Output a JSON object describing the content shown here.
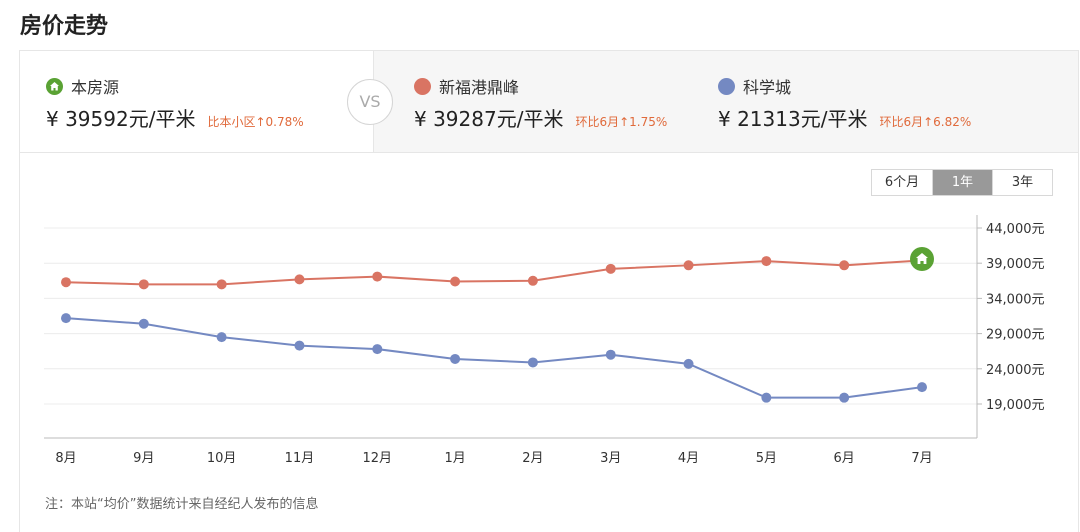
{
  "page_title": "房价走势",
  "compare": {
    "vs_label": "VS",
    "items": [
      {
        "name": "本房源",
        "price": "¥ 39592元/平米",
        "change": "比本小区↑0.78%",
        "color": "#5aa234",
        "icon": "home-icon"
      },
      {
        "name": "新福港鼎峰",
        "price": "¥ 39287元/平米",
        "change": "环比6月↑1.75%",
        "color": "#d97463"
      },
      {
        "name": "科学城",
        "price": "¥ 21313元/平米",
        "change": "环比6月↑6.82%",
        "color": "#7489c2"
      }
    ]
  },
  "period_tabs": [
    "6个月",
    "1年",
    "3年"
  ],
  "active_period": "1年",
  "note": "注：本站“均价”数据统计来自经纪人发布的信息",
  "chart_data": {
    "type": "line",
    "categories": [
      "8月",
      "9月",
      "10月",
      "11月",
      "12月",
      "1月",
      "2月",
      "3月",
      "4月",
      "5月",
      "6月",
      "7月"
    ],
    "ylim": [
      14000,
      44000
    ],
    "yticks": [
      44000,
      39000,
      34000,
      29000,
      24000,
      19000
    ],
    "ytick_labels": [
      "44,000元",
      "39,000元",
      "34,000元",
      "29,000元",
      "24,000元",
      "19,000元"
    ],
    "grid": true,
    "series": [
      {
        "name": "新福港鼎峰",
        "color": "#d97463",
        "values": [
          36300,
          36000,
          36000,
          36700,
          37100,
          36400,
          36500,
          38200,
          38700,
          39300,
          38700,
          39400
        ]
      },
      {
        "name": "科学城",
        "color": "#7489c2",
        "values": [
          31200,
          30400,
          28500,
          27300,
          26800,
          25400,
          24900,
          26000,
          24700,
          19900,
          19900,
          21400
        ]
      }
    ],
    "marker": {
      "label": "本房源",
      "category": "7月",
      "value": 39600,
      "color": "#5aa234"
    }
  }
}
